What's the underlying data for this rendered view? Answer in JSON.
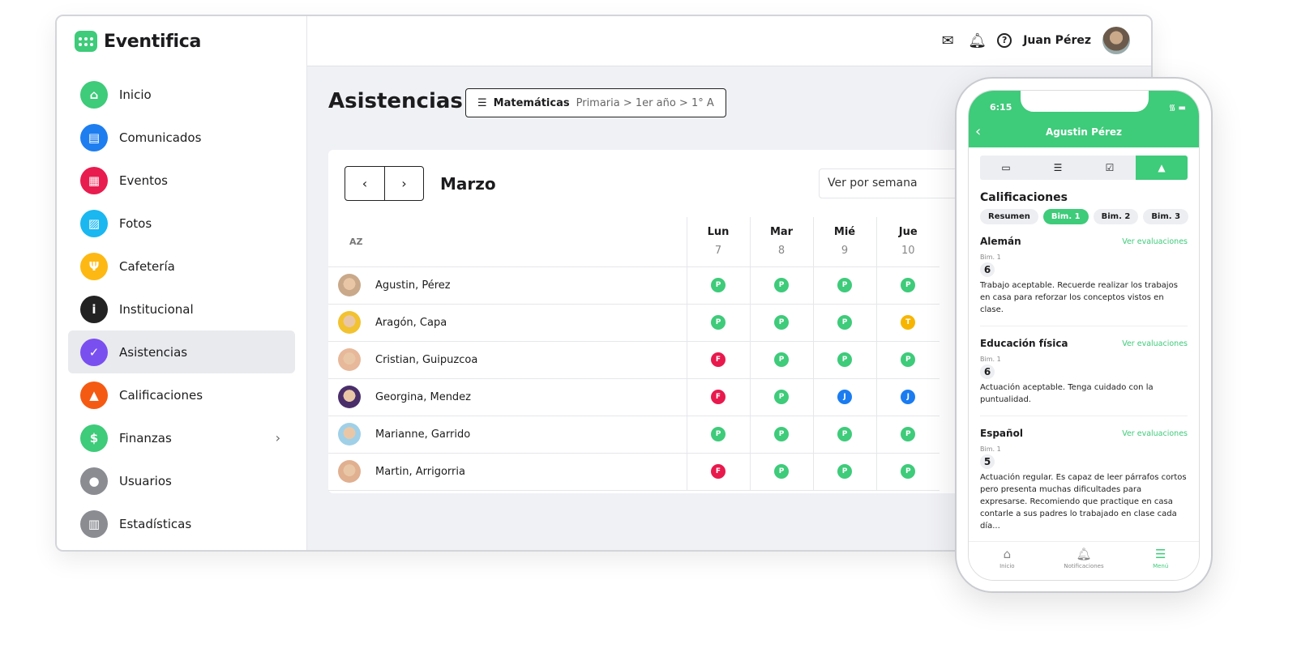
{
  "app": {
    "name": "Eventifica",
    "user": "Juan Pérez"
  },
  "colors": {
    "accent": "#3ecb7a",
    "present": "#3ecb7a",
    "absent": "#e8194d",
    "late": "#f7b500",
    "justified": "#1a7cf0"
  },
  "sidebar": {
    "items": [
      {
        "label": "Inicio",
        "icon": "home-icon",
        "color": "#3ecb7a",
        "glyph": "⌂"
      },
      {
        "label": "Comunicados",
        "icon": "message-icon",
        "color": "#1e7ef0",
        "glyph": "▤"
      },
      {
        "label": "Eventos",
        "icon": "calendar-icon",
        "color": "#e81c4f",
        "glyph": "▦"
      },
      {
        "label": "Fotos",
        "icon": "photo-icon",
        "color": "#1ab7f0",
        "glyph": "▨"
      },
      {
        "label": "Cafetería",
        "icon": "cutlery-icon",
        "color": "#fdb813",
        "glyph": "Ψ"
      },
      {
        "label": "Institucional",
        "icon": "info-icon",
        "color": "#222222",
        "glyph": "i"
      },
      {
        "label": "Asistencias",
        "icon": "clipboard-check-icon",
        "color": "#7a4ff0",
        "glyph": "✓"
      },
      {
        "label": "Calificaciones",
        "icon": "graduation-cap-icon",
        "color": "#f55a12",
        "glyph": "▲"
      },
      {
        "label": "Finanzas",
        "icon": "dollar-icon",
        "color": "#3ecb7a",
        "glyph": "$"
      },
      {
        "label": "Usuarios",
        "icon": "users-icon",
        "color": "#8a8c92",
        "glyph": "●"
      },
      {
        "label": "Estadísticas",
        "icon": "bar-chart-icon",
        "color": "#8a8c92",
        "glyph": "▥"
      }
    ],
    "active": "Asistencias"
  },
  "page": {
    "title": "Asistencias",
    "subject": "Matemáticas",
    "path": "Primaria > 1er año > 1° A",
    "month": "Marzo",
    "view": "Ver por semana",
    "sort_label": "AZ"
  },
  "days": [
    {
      "name": "Lun",
      "num": "7"
    },
    {
      "name": "Mar",
      "num": "8"
    },
    {
      "name": "Mié",
      "num": "9"
    },
    {
      "name": "Jue",
      "num": "10"
    }
  ],
  "students": [
    {
      "name": "Agustin, Pérez",
      "marks": [
        "P",
        "P",
        "P",
        "P"
      ]
    },
    {
      "name": "Aragón, Capa",
      "marks": [
        "P",
        "P",
        "P",
        "T"
      ]
    },
    {
      "name": "Cristian, Guipuzcoa",
      "marks": [
        "F",
        "P",
        "P",
        "P"
      ]
    },
    {
      "name": "Georgina, Mendez",
      "marks": [
        "F",
        "P",
        "J",
        "J"
      ]
    },
    {
      "name": "Marianne, Garrido",
      "marks": [
        "P",
        "P",
        "P",
        "P"
      ]
    },
    {
      "name": "Martin, Arrigorria",
      "marks": [
        "F",
        "P",
        "P",
        "P"
      ]
    }
  ],
  "phone": {
    "time": "6:15",
    "student": "Agustin Pérez",
    "section": "Calificaciones",
    "pills": [
      "Resumen",
      "Bim. 1",
      "Bim. 2",
      "Bim. 3"
    ],
    "active_pill": "Bim. 1",
    "link": "Ver evaluaciones",
    "subjects": [
      {
        "name": "Alemán",
        "period": "Bim. 1",
        "grade": "6",
        "comment": "Trabajo aceptable. Recuerde realizar los trabajos en casa para reforzar los conceptos vistos en clase."
      },
      {
        "name": "Educación física",
        "period": "Bim. 1",
        "grade": "6",
        "comment": "Actuación aceptable. Tenga cuidado con la puntualidad."
      },
      {
        "name": "Español",
        "period": "Bim. 1",
        "grade": "5",
        "comment": "Actuación regular. Es capaz de leer párrafos cortos pero presenta muchas dificultades para expresarse. Recomiendo que practique en casa contarle a sus padres lo trabajado en clase cada día..."
      }
    ],
    "tabbar": [
      "Inicio",
      "Notificaciones",
      "Menú"
    ]
  }
}
